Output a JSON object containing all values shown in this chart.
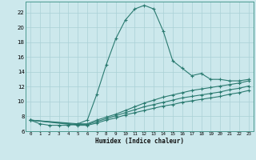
{
  "xlabel": "Humidex (Indice chaleur)",
  "bg_color": "#cce8ec",
  "grid_color": "#aad0d6",
  "line_color": "#2a7a70",
  "xlim": [
    -0.5,
    23.5
  ],
  "ylim": [
    6,
    23.5
  ],
  "xticks": [
    0,
    1,
    2,
    3,
    4,
    5,
    6,
    7,
    8,
    9,
    10,
    11,
    12,
    13,
    14,
    15,
    16,
    17,
    18,
    19,
    20,
    21,
    22,
    23
  ],
  "yticks": [
    6,
    8,
    10,
    12,
    14,
    16,
    18,
    20,
    22
  ],
  "line1_x": [
    0,
    1,
    2,
    3,
    4,
    5,
    6,
    7,
    8,
    9,
    10,
    11,
    12,
    13,
    14,
    15,
    16,
    17,
    18,
    19,
    20,
    21,
    22,
    23
  ],
  "line1_y": [
    7.5,
    7.0,
    6.8,
    6.8,
    6.8,
    7.0,
    7.5,
    11.0,
    15.0,
    18.5,
    21.0,
    22.5,
    23.0,
    22.5,
    19.5,
    15.5,
    14.5,
    13.5,
    13.8,
    13.0,
    13.0,
    12.8,
    12.8,
    13.0
  ],
  "line2_x": [
    0,
    5,
    6,
    7,
    8,
    9,
    10,
    11,
    12,
    13,
    14,
    15,
    16,
    17,
    18,
    19,
    20,
    21,
    22,
    23
  ],
  "line2_y": [
    7.5,
    7.0,
    7.0,
    7.5,
    7.9,
    8.3,
    8.8,
    9.3,
    9.8,
    10.2,
    10.6,
    10.9,
    11.2,
    11.5,
    11.7,
    11.9,
    12.1,
    12.3,
    12.5,
    12.8
  ],
  "line3_x": [
    0,
    5,
    6,
    7,
    8,
    9,
    10,
    11,
    12,
    13,
    14,
    15,
    16,
    17,
    18,
    19,
    20,
    21,
    22,
    23
  ],
  "line3_y": [
    7.5,
    6.9,
    6.9,
    7.3,
    7.7,
    8.1,
    8.5,
    8.9,
    9.3,
    9.6,
    9.9,
    10.2,
    10.5,
    10.7,
    10.9,
    11.1,
    11.3,
    11.6,
    11.8,
    12.1
  ],
  "line4_x": [
    0,
    5,
    6,
    7,
    8,
    9,
    10,
    11,
    12,
    13,
    14,
    15,
    16,
    17,
    18,
    19,
    20,
    21,
    22,
    23
  ],
  "line4_y": [
    7.5,
    6.8,
    6.8,
    7.1,
    7.5,
    7.8,
    8.2,
    8.5,
    8.8,
    9.1,
    9.4,
    9.6,
    9.9,
    10.1,
    10.3,
    10.5,
    10.7,
    11.0,
    11.2,
    11.5
  ]
}
